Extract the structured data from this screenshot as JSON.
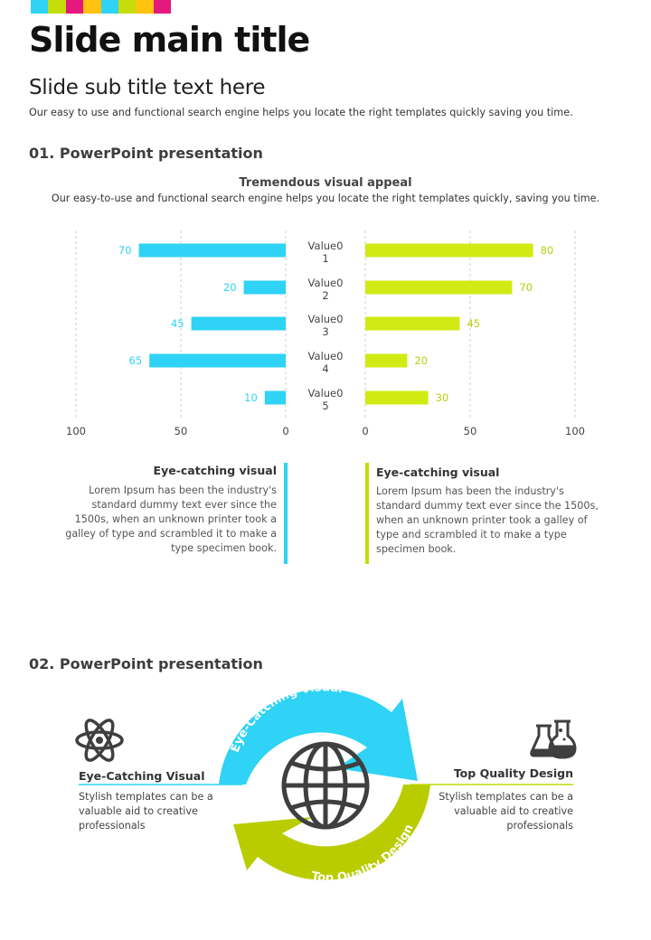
{
  "colors": {
    "cyan": "#2ed3f5",
    "lime": "#c3dc0a",
    "lime_bar": "#d2ea14",
    "magenta": "#e5197d",
    "yellow": "#ffc20e",
    "dark_icon": "#3f3f3f"
  },
  "header": {
    "strip_colors": [
      "#2ed3f5",
      "#c3dc0a",
      "#e5197d",
      "#ffc20e",
      "#2ed3f5",
      "#c3dc0a",
      "#ffc20e",
      "#e5197d"
    ],
    "title": "Slide main title",
    "subtitle": "Slide sub title text here",
    "description": "Our easy to use and functional search engine  helps you locate the right templates quickly saving you time."
  },
  "section1": {
    "title": "01. PowerPoint presentation",
    "chart_title": "Tremendous visual appeal",
    "chart_subtitle": "Our easy-to-use and functional search engine helps you locate the right templates quickly, saving you time.",
    "left_box": {
      "title": "Eye-catching visual",
      "text": "Lorem Ipsum has been the industry's standard dummy text ever since the 1500s, when an unknown printer took a galley of type and scrambled it to make a type specimen book."
    },
    "right_box": {
      "title": "Eye-catching visual",
      "text": "Lorem Ipsum has been the industry's standard dummy text ever since the 1500s, when an unknown printer took a galley of type and scrambled it to make a type specimen book."
    }
  },
  "chart_data": {
    "type": "bar",
    "orientation": "horizontal-butterfly",
    "categories": [
      [
        "Value0",
        "1"
      ],
      [
        "Value0",
        "2"
      ],
      [
        "Value0",
        "3"
      ],
      [
        "Value0",
        "4"
      ],
      [
        "Value0",
        "5"
      ]
    ],
    "series": [
      {
        "values": [
          70,
          20,
          45,
          65,
          10
        ],
        "color": "#2ed3f5",
        "side": "left"
      },
      {
        "values": [
          80,
          70,
          45,
          20,
          30
        ],
        "color": "#d2ea14",
        "side": "right"
      }
    ],
    "xlim": [
      0,
      100
    ],
    "left_ticks": [
      "100",
      "50",
      "0"
    ],
    "right_ticks": [
      "0",
      "50",
      "100"
    ],
    "grid": true,
    "label_colors": {
      "left": "#2ed3f5",
      "right": "#b8cf0b"
    }
  },
  "section2": {
    "title": "02. PowerPoint presentation",
    "arc_top_label": "Eye-Catching Visual",
    "arc_bottom_label": "Top Quality Design",
    "left": {
      "icon": "atom-icon",
      "title": "Eye-Catching Visual",
      "text": "Stylish templates can be a valuable aid to creative professionals"
    },
    "right": {
      "icon": "flask-icon",
      "title": "Top Quality Design",
      "text": "Stylish templates can be a valuable aid to creative professionals"
    },
    "center_icon": "globe-icon"
  }
}
